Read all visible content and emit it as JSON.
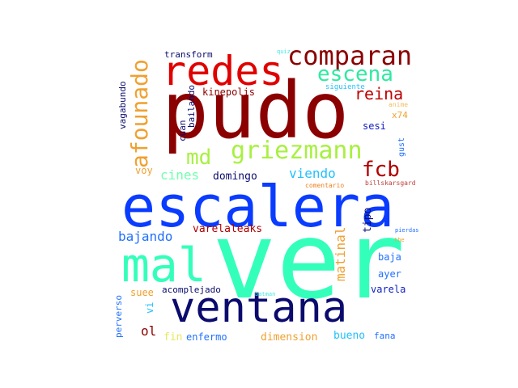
{
  "word_cloud": {
    "words": [
      {
        "text": "ver",
        "color": "#33ffbb"
      },
      {
        "text": "pudo",
        "color": "#8b0000"
      },
      {
        "text": "escalera",
        "color": "#0a3cff"
      },
      {
        "text": "ventana",
        "color": "#0b0b6e"
      },
      {
        "text": "mal",
        "color": "#33ffbb"
      },
      {
        "text": "redes",
        "color": "#e00000"
      },
      {
        "text": "comparan",
        "color": "#8b0000"
      },
      {
        "text": "griezmann",
        "color": "#a8f040"
      },
      {
        "text": "escena",
        "color": "#2eeaa0"
      },
      {
        "text": "afounado",
        "color": "#f0a030"
      },
      {
        "text": "md",
        "color": "#a8f040"
      },
      {
        "text": "fcb",
        "color": "#b00000"
      },
      {
        "text": "reina",
        "color": "#c00000"
      },
      {
        "text": "viendo",
        "color": "#20c0ff"
      },
      {
        "text": "cines",
        "color": "#70ffb0"
      },
      {
        "text": "domingo",
        "color": "#0b0b6e"
      },
      {
        "text": "bajando",
        "color": "#2070ff"
      },
      {
        "text": "varelaleaks",
        "color": "#b00000"
      },
      {
        "text": "kinepolis",
        "color": "#8b0000"
      },
      {
        "text": "transform",
        "color": "#0b0b6e"
      },
      {
        "text": "matinal",
        "color": "#f0a030"
      },
      {
        "text": "tipo",
        "color": "#0b0b6e"
      },
      {
        "text": "baja",
        "color": "#2070ff"
      },
      {
        "text": "ayer",
        "color": "#2070ff"
      },
      {
        "text": "varela",
        "color": "#1020c0"
      },
      {
        "text": "acomplejado",
        "color": "#0b0b6e"
      },
      {
        "text": "suee",
        "color": "#f0a030"
      },
      {
        "text": "ol",
        "color": "#8b0000"
      },
      {
        "text": "fin",
        "color": "#e8e860"
      },
      {
        "text": "enfermo",
        "color": "#2070ff"
      },
      {
        "text": "dimension",
        "color": "#f0a030"
      },
      {
        "text": "bueno",
        "color": "#20c0ff"
      },
      {
        "text": "fana",
        "color": "#2070ff"
      },
      {
        "text": "perverso",
        "color": "#2070ff"
      },
      {
        "text": "vi",
        "color": "#20c0ff"
      },
      {
        "text": "vagabundo",
        "color": "#0b0b6e"
      },
      {
        "text": "cuan",
        "color": "#0b0b6e"
      },
      {
        "text": "bailando",
        "color": "#0b0b6e"
      },
      {
        "text": "voy",
        "color": "#f0a030"
      },
      {
        "text": "sesi",
        "color": "#1020c0"
      },
      {
        "text": "x74",
        "color": "#f0a030"
      },
      {
        "text": "gust",
        "color": "#2070ff"
      },
      {
        "text": "siguiente",
        "color": "#20c0ff"
      },
      {
        "text": "quiz",
        "color": "#40e8e0"
      },
      {
        "text": "anime",
        "color": "#f0c060"
      },
      {
        "text": "comentario",
        "color": "#f08020"
      },
      {
        "text": "billskarsgard",
        "color": "#c04040"
      },
      {
        "text": "pierdas",
        "color": "#2070ff"
      },
      {
        "text": "the",
        "color": "#f0a030"
      },
      {
        "text": "batman",
        "color": "#40e8e0"
      }
    ]
  }
}
